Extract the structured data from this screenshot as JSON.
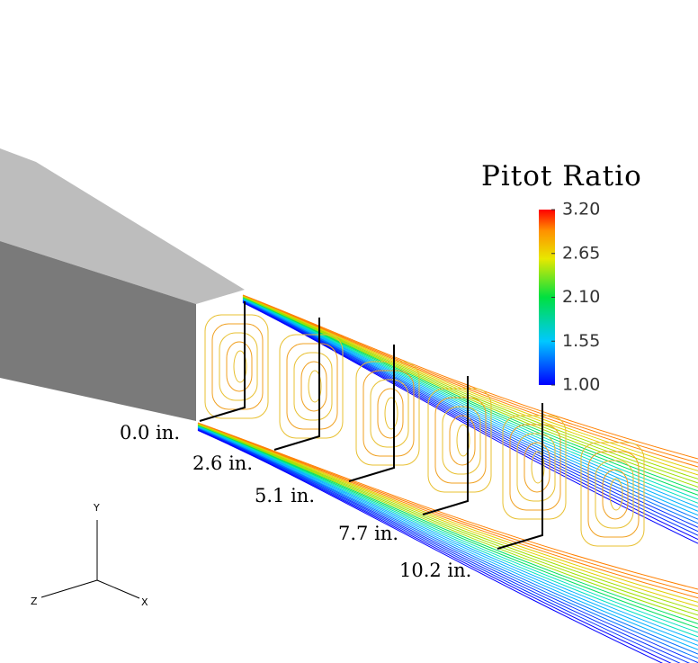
{
  "colorbar": {
    "title": "Pitot Ratio",
    "ticks": [
      {
        "value": 3.2,
        "label": "3.20"
      },
      {
        "value": 2.65,
        "label": "2.65"
      },
      {
        "value": 2.1,
        "label": "2.10"
      },
      {
        "value": 1.55,
        "label": "1.55"
      },
      {
        "value": 1,
        "label": "1.00"
      }
    ]
  },
  "stations": [
    "0.0 in.",
    "2.6 in.",
    "5.1 in.",
    "7.7 in.",
    "10.2 in."
  ],
  "axes": {
    "x": "X",
    "y": "Y",
    "z": "Z"
  }
}
